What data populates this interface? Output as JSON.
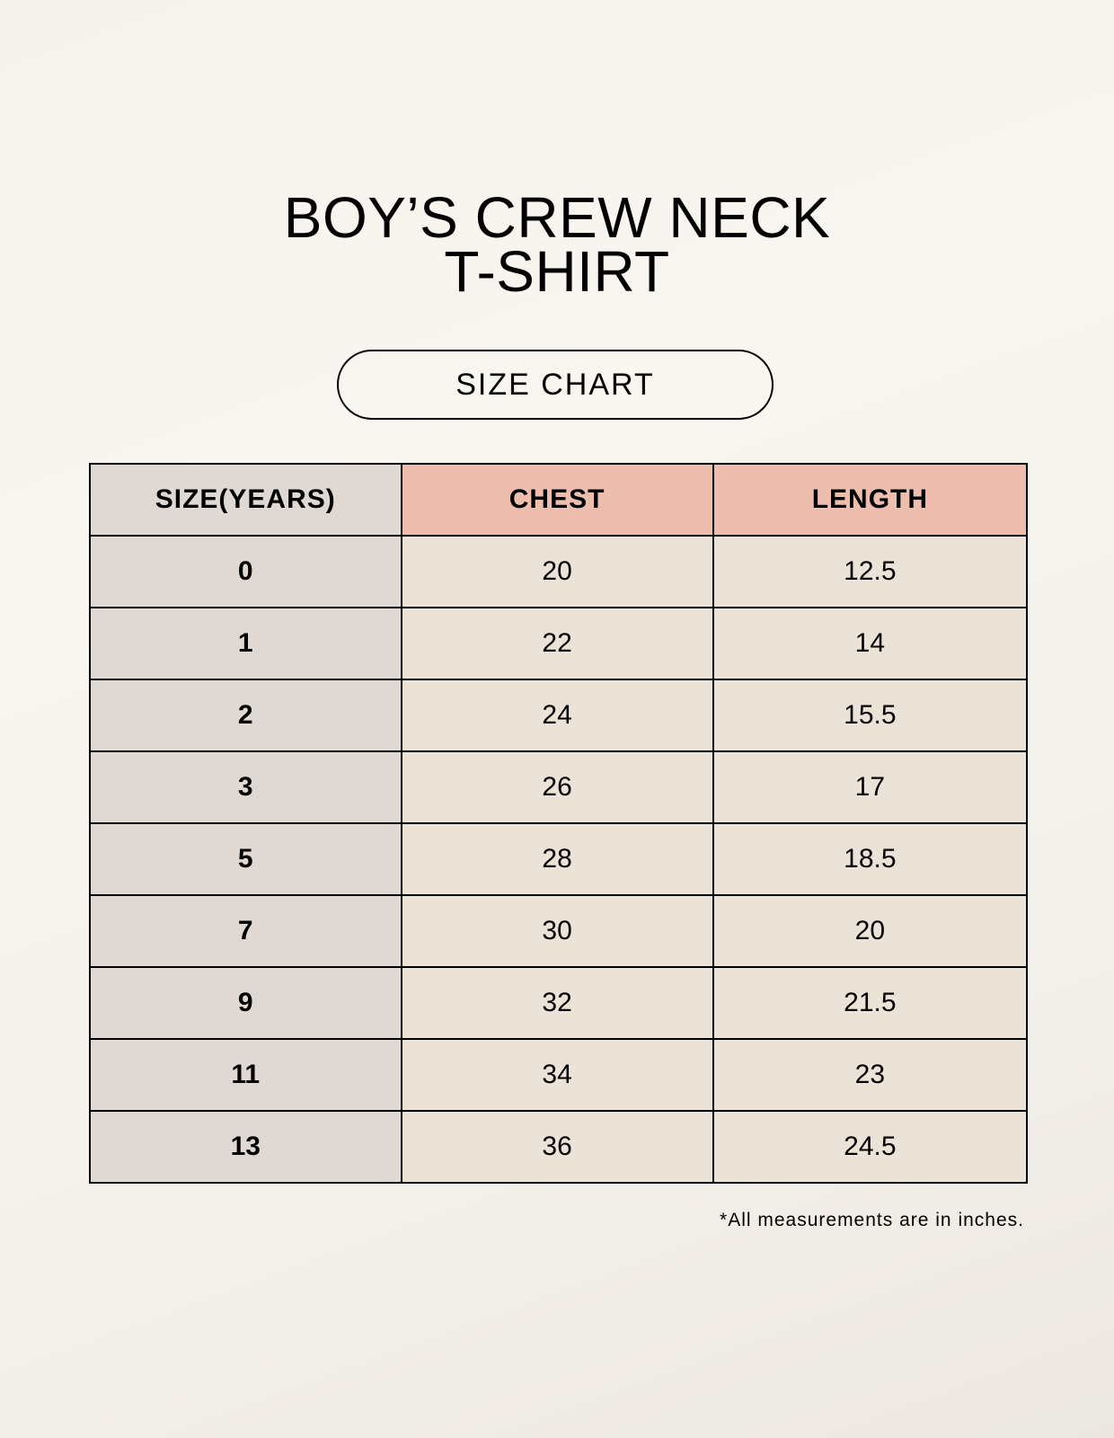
{
  "title": {
    "line1": "BOY’S CREW NECK",
    "line2": "T-SHIRT"
  },
  "subtitle_pill": "SIZE CHART",
  "table": {
    "headers": [
      "SIZE(YEARS)",
      "CHEST",
      "LENGTH"
    ],
    "rows": [
      [
        "0",
        "20",
        "12.5"
      ],
      [
        "1",
        "22",
        "14"
      ],
      [
        "2",
        "24",
        "15.5"
      ],
      [
        "3",
        "26",
        "17"
      ],
      [
        "5",
        "28",
        "18.5"
      ],
      [
        "7",
        "30",
        "20"
      ],
      [
        "9",
        "32",
        "21.5"
      ],
      [
        "11",
        "34",
        "23"
      ],
      [
        "13",
        "36",
        "24.5"
      ]
    ]
  },
  "footnote": "*All measurements are in inches.",
  "colors": {
    "header_accent": "#edbdae",
    "size_column": "#e0d9d3",
    "cell": "#ebe2d8"
  }
}
